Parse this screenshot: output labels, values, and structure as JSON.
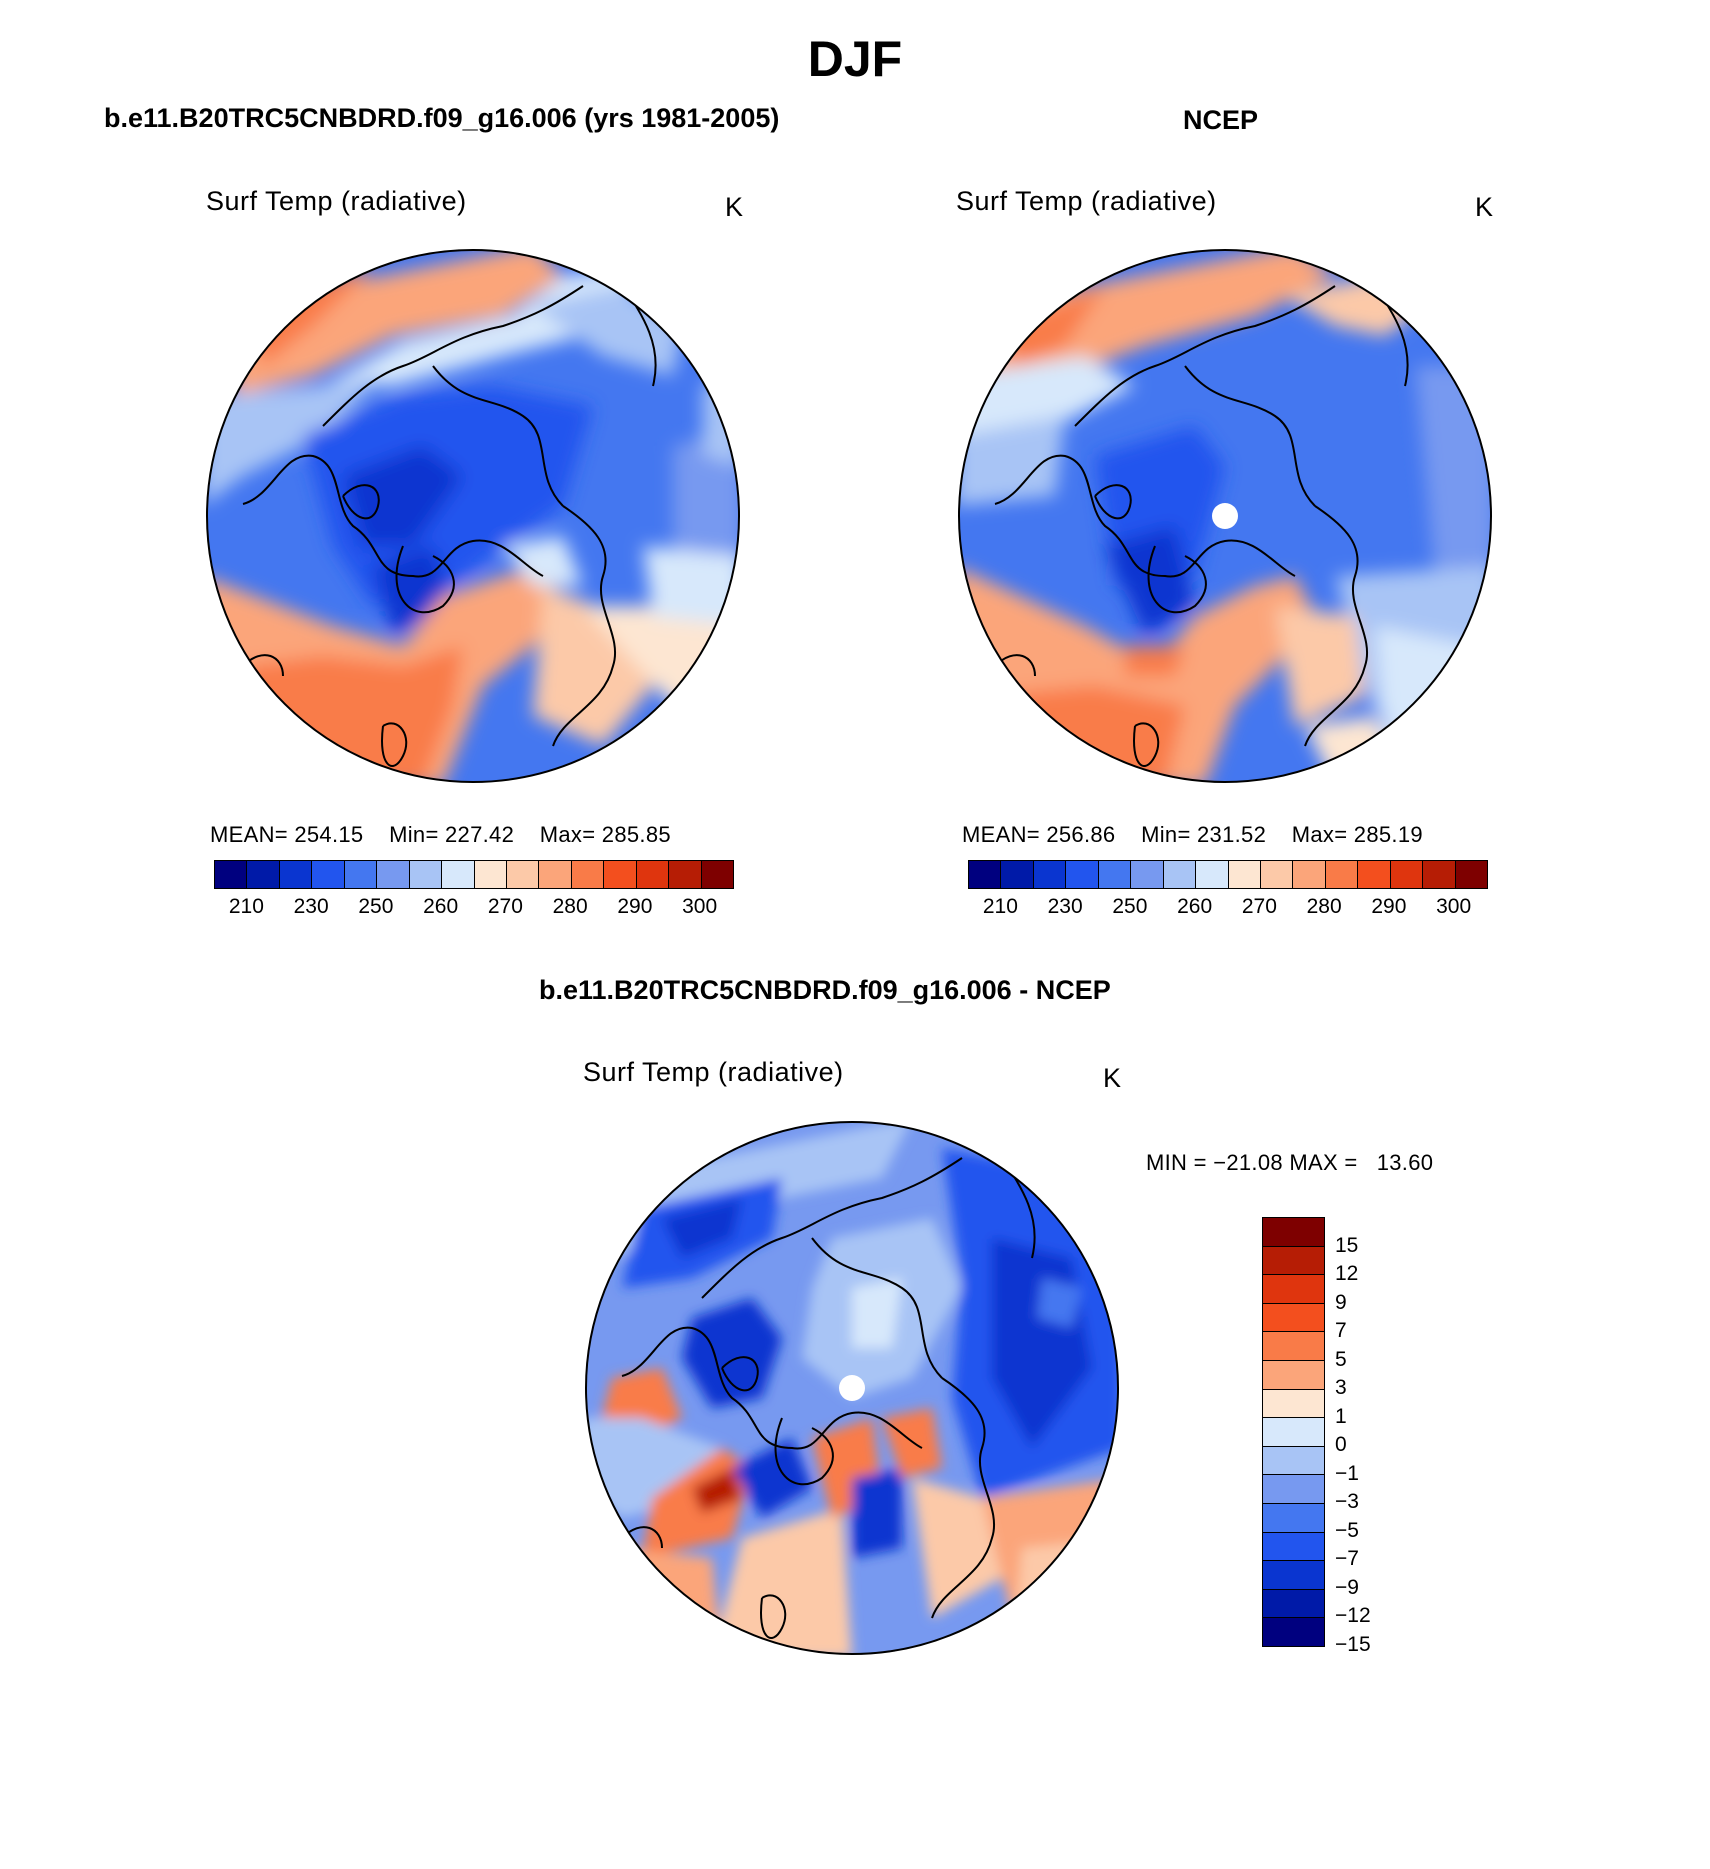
{
  "page": {
    "title": "DJF"
  },
  "panels": [
    {
      "heading": "b.e11.B20TRC5CNBDRD.f09_g16.006 (yrs 1981-2005)",
      "title": "Surf Temp (radiative)",
      "units": "K",
      "stats": {
        "mean_label": "MEAN=",
        "mean": "254.15",
        "min_label": "Min=",
        "min": "227.42",
        "max_label": "Max=",
        "max": "285.85"
      },
      "colorbar": {
        "colors": [
          "#00007f",
          "#001aa8",
          "#0a35d0",
          "#2255ee",
          "#4477f0",
          "#7799f0",
          "#a8c4f5",
          "#d7e8fb",
          "#fde6d2",
          "#fcc9a8",
          "#fba57a",
          "#f97b48",
          "#f34f1e",
          "#df350e",
          "#b61d05",
          "#7e0000"
        ],
        "ticks": [
          "210",
          "230",
          "250",
          "260",
          "270",
          "280",
          "290",
          "300"
        ]
      },
      "has_pole_hole": false
    },
    {
      "heading": "NCEP",
      "title": "Surf Temp (radiative)",
      "units": "K",
      "stats": {
        "mean_label": "MEAN=",
        "mean": "256.86",
        "min_label": "Min=",
        "min": "231.52",
        "max_label": "Max=",
        "max": "285.19"
      },
      "colorbar": {
        "colors": [
          "#00007f",
          "#001aa8",
          "#0a35d0",
          "#2255ee",
          "#4477f0",
          "#7799f0",
          "#a8c4f5",
          "#d7e8fb",
          "#fde6d2",
          "#fcc9a8",
          "#fba57a",
          "#f97b48",
          "#f34f1e",
          "#df350e",
          "#b61d05",
          "#7e0000"
        ],
        "ticks": [
          "210",
          "230",
          "250",
          "260",
          "270",
          "280",
          "290",
          "300"
        ]
      },
      "has_pole_hole": true
    }
  ],
  "difference": {
    "heading": "b.e11.B20TRC5CNBDRD.f09_g16.006 - NCEP",
    "title": "Surf Temp (radiative)",
    "units": "K",
    "stats": {
      "min_label": "MIN =",
      "min": "−21.08",
      "max_label": "MAX =",
      "max": "13.60"
    },
    "colorbar": {
      "colors": [
        "#7e0000",
        "#b61d05",
        "#df350e",
        "#f34f1e",
        "#f97b48",
        "#fba57a",
        "#fde6d2",
        "#d7e8fb",
        "#a8c4f5",
        "#7799f0",
        "#4477f0",
        "#2255ee",
        "#0a35d0",
        "#001aa8",
        "#00007f"
      ],
      "ticks": [
        "15",
        "12",
        "9",
        "7",
        "5",
        "3",
        "1",
        "0",
        "−1",
        "−3",
        "−5",
        "−7",
        "−9",
        "−12",
        "−15"
      ]
    },
    "has_pole_hole": true
  }
}
